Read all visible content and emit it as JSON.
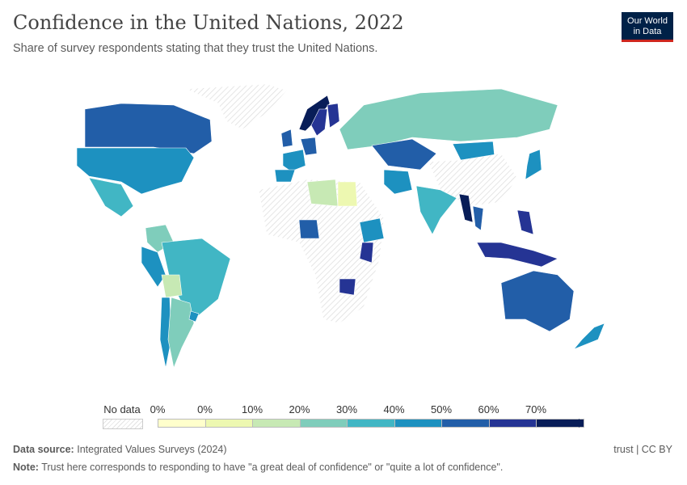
{
  "header": {
    "title": "Confidence in the United Nations, 2022",
    "subtitle": "Share of survey respondents stating that they trust the United Nations.",
    "logo_line1": "Our World",
    "logo_line2": "in Data"
  },
  "legend": {
    "no_data_label": "No data",
    "tick_labels": [
      "0%",
      "0%",
      "10%",
      "20%",
      "30%",
      "40%",
      "50%",
      "60%",
      "70%"
    ],
    "bin_colors": [
      "#ffffcc",
      "#edf8b1",
      "#c7e9b4",
      "#7fcdbb",
      "#41b6c4",
      "#1d91c0",
      "#225ea8",
      "#253494",
      "#081d58"
    ],
    "no_data_color": "#e8e8e8"
  },
  "chart_data": {
    "type": "choropleth",
    "title": "Confidence in the United Nations, 2022",
    "unit": "%",
    "regions": [
      {
        "name": "Canada",
        "bin": 6
      },
      {
        "name": "United States",
        "bin": 5
      },
      {
        "name": "Mexico",
        "bin": 4
      },
      {
        "name": "Colombia",
        "bin": 3
      },
      {
        "name": "Brazil",
        "bin": 4
      },
      {
        "name": "Peru",
        "bin": 5
      },
      {
        "name": "Bolivia",
        "bin": 2
      },
      {
        "name": "Chile",
        "bin": 5
      },
      {
        "name": "Argentina",
        "bin": 3
      },
      {
        "name": "Uruguay",
        "bin": 5
      },
      {
        "name": "Greenland",
        "bin": null
      },
      {
        "name": "Norway",
        "bin": 8
      },
      {
        "name": "Sweden",
        "bin": 7
      },
      {
        "name": "Finland",
        "bin": 7
      },
      {
        "name": "United Kingdom",
        "bin": 6
      },
      {
        "name": "Germany",
        "bin": 6
      },
      {
        "name": "France",
        "bin": 5
      },
      {
        "name": "Spain",
        "bin": 5
      },
      {
        "name": "Russia",
        "bin": 3
      },
      {
        "name": "Kazakhstan",
        "bin": 6
      },
      {
        "name": "Mongolia",
        "bin": 5
      },
      {
        "name": "China",
        "bin": null
      },
      {
        "name": "Japan",
        "bin": 5
      },
      {
        "name": "Iran",
        "bin": 5
      },
      {
        "name": "India",
        "bin": 4
      },
      {
        "name": "Myanmar",
        "bin": 8
      },
      {
        "name": "Thailand",
        "bin": 6
      },
      {
        "name": "Philippines",
        "bin": 7
      },
      {
        "name": "Indonesia",
        "bin": 7
      },
      {
        "name": "Libya",
        "bin": 2
      },
      {
        "name": "Egypt",
        "bin": 1
      },
      {
        "name": "Nigeria",
        "bin": 6
      },
      {
        "name": "Ethiopia",
        "bin": 5
      },
      {
        "name": "Kenya",
        "bin": 7
      },
      {
        "name": "Zimbabwe",
        "bin": 7
      },
      {
        "name": "Australia",
        "bin": 6
      },
      {
        "name": "New Zealand",
        "bin": 5
      }
    ]
  },
  "footer": {
    "source_label": "Data source:",
    "source_text": "Integrated Values Surveys (2024)",
    "note_label": "Note:",
    "note_text": "Trust here corresponds to responding to have \"a great deal of confidence\" or \"quite a lot of confidence\".",
    "license": "trust | CC BY"
  }
}
